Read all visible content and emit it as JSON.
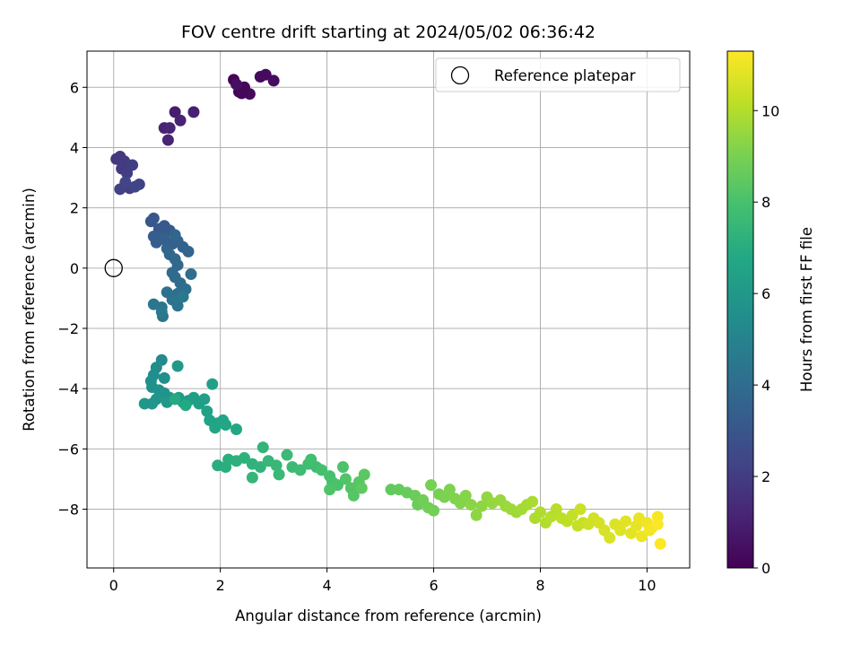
{
  "chart_data": {
    "type": "scatter",
    "title": "FOV centre drift starting at 2024/05/02 06:36:42",
    "xlabel": "Angular distance from reference (arcmin)",
    "ylabel": "Rotation from reference (arcmin)",
    "xlim": [
      -0.5,
      10.8
    ],
    "ylim": [
      -9.95,
      7.2
    ],
    "x_ticks": [
      0,
      2,
      4,
      6,
      8,
      10
    ],
    "x_tick_labels": [
      "0",
      "2",
      "4",
      "6",
      "8",
      "10"
    ],
    "y_ticks": [
      -8,
      -6,
      -4,
      -2,
      0,
      2,
      4,
      6
    ],
    "y_tick_labels": [
      "−8",
      "−6",
      "−4",
      "−2",
      "0",
      "2",
      "4",
      "6"
    ],
    "grid": true,
    "legend": {
      "placement": "top-right",
      "entries": [
        {
          "label": "Reference platepar",
          "marker": "open-circle",
          "x": 0,
          "y": 0
        }
      ]
    },
    "colorbar": {
      "label": "Hours from first FF file",
      "colormap": "viridis",
      "range": [
        0,
        11.3
      ],
      "ticks": [
        0,
        2,
        4,
        6,
        8,
        10
      ],
      "tick_labels": [
        "0",
        "2",
        "4",
        "6",
        "8",
        "10"
      ]
    },
    "series": [
      {
        "points": [
          {
            "x": 2.25,
            "y": 6.25,
            "c": 0.05
          },
          {
            "x": 2.35,
            "y": 5.85,
            "c": 0.1
          },
          {
            "x": 2.45,
            "y": 6.0,
            "c": 0.15
          },
          {
            "x": 2.4,
            "y": 5.8,
            "c": 0.2
          },
          {
            "x": 2.55,
            "y": 5.78,
            "c": 0.25
          },
          {
            "x": 2.75,
            "y": 6.35,
            "c": 0.3
          },
          {
            "x": 2.85,
            "y": 6.42,
            "c": 0.35
          },
          {
            "x": 3.0,
            "y": 6.22,
            "c": 0.4
          },
          {
            "x": 2.3,
            "y": 6.1,
            "c": 0.45
          },
          {
            "x": 1.15,
            "y": 5.18,
            "c": 0.9
          },
          {
            "x": 1.5,
            "y": 5.18,
            "c": 1.0
          },
          {
            "x": 1.25,
            "y": 4.9,
            "c": 1.05
          },
          {
            "x": 0.95,
            "y": 4.65,
            "c": 1.1
          },
          {
            "x": 1.05,
            "y": 4.65,
            "c": 1.15
          },
          {
            "x": 1.02,
            "y": 4.25,
            "c": 1.2
          },
          {
            "x": 0.05,
            "y": 3.62,
            "c": 1.8
          },
          {
            "x": 0.12,
            "y": 3.7,
            "c": 1.85
          },
          {
            "x": 0.2,
            "y": 3.55,
            "c": 1.9
          },
          {
            "x": 0.15,
            "y": 3.3,
            "c": 1.95
          },
          {
            "x": 0.25,
            "y": 3.15,
            "c": 2.0
          },
          {
            "x": 0.35,
            "y": 3.42,
            "c": 2.05
          },
          {
            "x": 0.3,
            "y": 2.65,
            "c": 2.1
          },
          {
            "x": 0.12,
            "y": 2.62,
            "c": 2.15
          },
          {
            "x": 0.48,
            "y": 2.78,
            "c": 2.2
          },
          {
            "x": 0.4,
            "y": 2.7,
            "c": 2.25
          },
          {
            "x": 0.22,
            "y": 2.85,
            "c": 2.3
          },
          {
            "x": 0.7,
            "y": 1.55,
            "c": 3.0
          },
          {
            "x": 0.75,
            "y": 1.65,
            "c": 3.05
          },
          {
            "x": 0.85,
            "y": 1.3,
            "c": 3.1
          },
          {
            "x": 0.95,
            "y": 1.4,
            "c": 3.15
          },
          {
            "x": 1.05,
            "y": 1.25,
            "c": 3.2
          },
          {
            "x": 0.9,
            "y": 1.1,
            "c": 3.25
          },
          {
            "x": 0.75,
            "y": 1.05,
            "c": 3.3
          },
          {
            "x": 0.8,
            "y": 0.85,
            "c": 3.35
          },
          {
            "x": 0.95,
            "y": 0.95,
            "c": 3.4
          },
          {
            "x": 1.1,
            "y": 0.8,
            "c": 3.45
          },
          {
            "x": 1.2,
            "y": 0.9,
            "c": 3.5
          },
          {
            "x": 1.3,
            "y": 0.7,
            "c": 3.55
          },
          {
            "x": 1.4,
            "y": 0.55,
            "c": 3.6
          },
          {
            "x": 1.0,
            "y": 0.65,
            "c": 3.65
          },
          {
            "x": 1.15,
            "y": 1.1,
            "c": 3.7
          },
          {
            "x": 1.05,
            "y": 0.45,
            "c": 3.75
          },
          {
            "x": 1.15,
            "y": 0.3,
            "c": 3.8
          },
          {
            "x": 1.2,
            "y": 0.1,
            "c": 3.85
          },
          {
            "x": 1.1,
            "y": -0.15,
            "c": 3.9
          },
          {
            "x": 1.15,
            "y": -0.3,
            "c": 3.95
          },
          {
            "x": 1.25,
            "y": -0.5,
            "c": 4.0
          },
          {
            "x": 1.45,
            "y": -0.2,
            "c": 4.05
          },
          {
            "x": 1.35,
            "y": -0.7,
            "c": 4.1
          },
          {
            "x": 1.2,
            "y": -0.85,
            "c": 4.15
          },
          {
            "x": 1.0,
            "y": -0.8,
            "c": 4.2
          },
          {
            "x": 1.1,
            "y": -1.05,
            "c": 4.25
          },
          {
            "x": 1.2,
            "y": -1.25,
            "c": 4.3
          },
          {
            "x": 0.9,
            "y": -1.3,
            "c": 4.35
          },
          {
            "x": 0.92,
            "y": -1.6,
            "c": 4.4
          },
          {
            "x": 0.75,
            "y": -1.2,
            "c": 4.45
          },
          {
            "x": 1.3,
            "y": -0.95,
            "c": 4.5
          },
          {
            "x": 0.9,
            "y": -1.45,
            "c": 4.55
          },
          {
            "x": 0.9,
            "y": -3.05,
            "c": 5.4
          },
          {
            "x": 0.8,
            "y": -3.3,
            "c": 5.45
          },
          {
            "x": 0.75,
            "y": -3.55,
            "c": 5.5
          },
          {
            "x": 0.95,
            "y": -3.65,
            "c": 5.55
          },
          {
            "x": 0.7,
            "y": -3.75,
            "c": 5.6
          },
          {
            "x": 0.72,
            "y": -3.95,
            "c": 5.65
          },
          {
            "x": 0.85,
            "y": -4.05,
            "c": 5.7
          },
          {
            "x": 0.95,
            "y": -4.15,
            "c": 5.75
          },
          {
            "x": 1.05,
            "y": -4.3,
            "c": 5.8
          },
          {
            "x": 0.8,
            "y": -4.35,
            "c": 5.85
          },
          {
            "x": 0.72,
            "y": -4.5,
            "c": 5.9
          },
          {
            "x": 0.58,
            "y": -4.5,
            "c": 5.95
          },
          {
            "x": 1.0,
            "y": -4.45,
            "c": 6.0
          },
          {
            "x": 1.2,
            "y": -3.25,
            "c": 6.05
          },
          {
            "x": 1.22,
            "y": -4.3,
            "c": 6.1
          },
          {
            "x": 1.3,
            "y": -4.45,
            "c": 6.15
          },
          {
            "x": 1.4,
            "y": -4.4,
            "c": 6.2
          },
          {
            "x": 1.5,
            "y": -4.3,
            "c": 6.25
          },
          {
            "x": 1.6,
            "y": -4.5,
            "c": 6.3
          },
          {
            "x": 1.7,
            "y": -4.35,
            "c": 6.35
          },
          {
            "x": 1.85,
            "y": -3.85,
            "c": 6.4
          },
          {
            "x": 1.75,
            "y": -4.75,
            "c": 6.45
          },
          {
            "x": 1.8,
            "y": -5.05,
            "c": 6.5
          },
          {
            "x": 1.95,
            "y": -5.15,
            "c": 6.55
          },
          {
            "x": 2.05,
            "y": -5.05,
            "c": 6.6
          },
          {
            "x": 1.9,
            "y": -5.3,
            "c": 6.65
          },
          {
            "x": 2.1,
            "y": -5.2,
            "c": 6.7
          },
          {
            "x": 2.3,
            "y": -5.35,
            "c": 6.75
          },
          {
            "x": 1.35,
            "y": -4.55,
            "c": 6.8
          },
          {
            "x": 1.15,
            "y": -4.35,
            "c": 6.85
          },
          {
            "x": 1.95,
            "y": -6.55,
            "c": 7.0
          },
          {
            "x": 2.1,
            "y": -6.6,
            "c": 7.05
          },
          {
            "x": 2.15,
            "y": -6.35,
            "c": 7.1
          },
          {
            "x": 2.3,
            "y": -6.4,
            "c": 7.15
          },
          {
            "x": 2.45,
            "y": -6.3,
            "c": 7.2
          },
          {
            "x": 2.6,
            "y": -6.5,
            "c": 7.25
          },
          {
            "x": 2.75,
            "y": -6.6,
            "c": 7.3
          },
          {
            "x": 2.8,
            "y": -5.95,
            "c": 7.35
          },
          {
            "x": 2.6,
            "y": -6.95,
            "c": 7.4
          },
          {
            "x": 2.9,
            "y": -6.4,
            "c": 7.45
          },
          {
            "x": 3.05,
            "y": -6.55,
            "c": 7.5
          },
          {
            "x": 3.1,
            "y": -6.85,
            "c": 7.55
          },
          {
            "x": 3.25,
            "y": -6.2,
            "c": 7.6
          },
          {
            "x": 3.35,
            "y": -6.6,
            "c": 7.65
          },
          {
            "x": 3.5,
            "y": -6.7,
            "c": 7.7
          },
          {
            "x": 3.65,
            "y": -6.5,
            "c": 7.75
          },
          {
            "x": 3.8,
            "y": -6.6,
            "c": 7.8
          },
          {
            "x": 3.7,
            "y": -6.35,
            "c": 7.85
          },
          {
            "x": 3.9,
            "y": -6.7,
            "c": 7.9
          },
          {
            "x": 4.05,
            "y": -6.9,
            "c": 7.95
          },
          {
            "x": 4.1,
            "y": -7.1,
            "c": 8.0
          },
          {
            "x": 4.2,
            "y": -7.2,
            "c": 8.05
          },
          {
            "x": 4.3,
            "y": -6.6,
            "c": 8.1
          },
          {
            "x": 4.05,
            "y": -7.35,
            "c": 8.15
          },
          {
            "x": 4.35,
            "y": -7.0,
            "c": 8.2
          },
          {
            "x": 4.45,
            "y": -7.3,
            "c": 8.25
          },
          {
            "x": 4.5,
            "y": -7.55,
            "c": 8.3
          },
          {
            "x": 4.6,
            "y": -7.1,
            "c": 8.35
          },
          {
            "x": 4.7,
            "y": -6.85,
            "c": 8.4
          },
          {
            "x": 4.65,
            "y": -7.3,
            "c": 8.45
          },
          {
            "x": 5.2,
            "y": -7.35,
            "c": 8.55
          },
          {
            "x": 5.35,
            "y": -7.35,
            "c": 8.6
          },
          {
            "x": 5.5,
            "y": -7.45,
            "c": 8.65
          },
          {
            "x": 5.65,
            "y": -7.55,
            "c": 8.7
          },
          {
            "x": 5.7,
            "y": -7.85,
            "c": 8.75
          },
          {
            "x": 5.8,
            "y": -7.7,
            "c": 8.8
          },
          {
            "x": 5.9,
            "y": -7.95,
            "c": 8.85
          },
          {
            "x": 6.0,
            "y": -8.05,
            "c": 8.9
          },
          {
            "x": 5.95,
            "y": -7.2,
            "c": 8.95
          },
          {
            "x": 6.1,
            "y": -7.5,
            "c": 9.0
          },
          {
            "x": 6.2,
            "y": -7.6,
            "c": 9.05
          },
          {
            "x": 6.3,
            "y": -7.35,
            "c": 9.1
          },
          {
            "x": 6.4,
            "y": -7.65,
            "c": 9.15
          },
          {
            "x": 6.5,
            "y": -7.8,
            "c": 9.2
          },
          {
            "x": 6.6,
            "y": -7.55,
            "c": 9.25
          },
          {
            "x": 6.7,
            "y": -7.85,
            "c": 9.3
          },
          {
            "x": 6.8,
            "y": -8.2,
            "c": 9.35
          },
          {
            "x": 6.9,
            "y": -7.9,
            "c": 9.4
          },
          {
            "x": 7.0,
            "y": -7.6,
            "c": 9.45
          },
          {
            "x": 7.1,
            "y": -7.8,
            "c": 9.5
          },
          {
            "x": 7.25,
            "y": -7.7,
            "c": 9.55
          },
          {
            "x": 7.35,
            "y": -7.9,
            "c": 9.6
          },
          {
            "x": 7.45,
            "y": -8.0,
            "c": 9.65
          },
          {
            "x": 7.55,
            "y": -8.1,
            "c": 9.7
          },
          {
            "x": 7.65,
            "y": -8.0,
            "c": 9.75
          },
          {
            "x": 7.75,
            "y": -7.85,
            "c": 9.8
          },
          {
            "x": 7.85,
            "y": -7.75,
            "c": 9.85
          },
          {
            "x": 7.9,
            "y": -8.3,
            "c": 9.9
          },
          {
            "x": 8.0,
            "y": -8.1,
            "c": 9.95
          },
          {
            "x": 8.1,
            "y": -8.45,
            "c": 10.0
          },
          {
            "x": 8.2,
            "y": -8.25,
            "c": 10.05
          },
          {
            "x": 8.3,
            "y": -8.0,
            "c": 10.1
          },
          {
            "x": 8.4,
            "y": -8.3,
            "c": 10.15
          },
          {
            "x": 8.5,
            "y": -8.4,
            "c": 10.2
          },
          {
            "x": 8.6,
            "y": -8.2,
            "c": 10.25
          },
          {
            "x": 8.7,
            "y": -8.55,
            "c": 10.3
          },
          {
            "x": 8.8,
            "y": -8.45,
            "c": 10.35
          },
          {
            "x": 8.75,
            "y": -8.0,
            "c": 10.4
          },
          {
            "x": 8.9,
            "y": -8.5,
            "c": 10.45
          },
          {
            "x": 9.0,
            "y": -8.3,
            "c": 10.5
          },
          {
            "x": 9.1,
            "y": -8.45,
            "c": 10.55
          },
          {
            "x": 9.2,
            "y": -8.7,
            "c": 10.6
          },
          {
            "x": 9.3,
            "y": -8.95,
            "c": 10.65
          },
          {
            "x": 9.4,
            "y": -8.5,
            "c": 10.7
          },
          {
            "x": 9.5,
            "y": -8.7,
            "c": 10.75
          },
          {
            "x": 9.6,
            "y": -8.4,
            "c": 10.8
          },
          {
            "x": 9.7,
            "y": -8.8,
            "c": 10.85
          },
          {
            "x": 9.8,
            "y": -8.55,
            "c": 10.9
          },
          {
            "x": 9.85,
            "y": -8.3,
            "c": 10.95
          },
          {
            "x": 9.9,
            "y": -8.9,
            "c": 11.0
          },
          {
            "x": 10.0,
            "y": -8.45,
            "c": 11.05
          },
          {
            "x": 10.05,
            "y": -8.7,
            "c": 11.1
          },
          {
            "x": 10.1,
            "y": -8.6,
            "c": 11.15
          },
          {
            "x": 10.2,
            "y": -8.25,
            "c": 11.2
          },
          {
            "x": 10.2,
            "y": -8.5,
            "c": 11.25
          },
          {
            "x": 10.25,
            "y": -9.15,
            "c": 11.3
          }
        ]
      }
    ]
  }
}
